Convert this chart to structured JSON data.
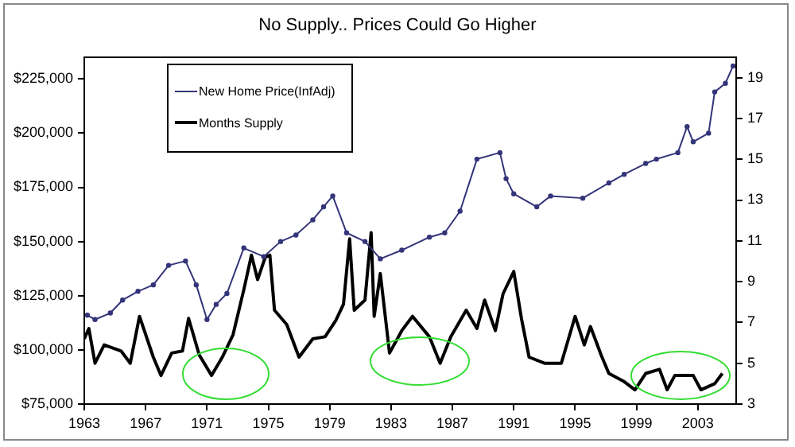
{
  "chart_data": {
    "type": "line",
    "title": "No Supply.. Prices Could Go Higher",
    "xlim": [
      1963,
      2005.5
    ],
    "xticks": [
      1963,
      1967,
      1971,
      1975,
      1979,
      1983,
      1987,
      1991,
      1995,
      1999,
      2003
    ],
    "ylim": [
      75000,
      235000
    ],
    "yticks": [
      {
        "value": 75000,
        "label": "$75,000"
      },
      {
        "value": 100000,
        "label": "$100,000"
      },
      {
        "value": 125000,
        "label": "$125,000"
      },
      {
        "value": 150000,
        "label": "$150,000"
      },
      {
        "value": 175000,
        "label": "$175,000"
      },
      {
        "value": 200000,
        "label": "$200,000"
      },
      {
        "value": 225000,
        "label": "$225,000"
      }
    ],
    "y2lim": [
      3,
      20
    ],
    "y2ticks": [
      3,
      5,
      7,
      9,
      11,
      13,
      15,
      17,
      19
    ],
    "grid": false,
    "legend": "top left",
    "line_style": "solid",
    "series": [
      {
        "name": "New Home Price(InfAdj)",
        "color": "#34347a",
        "marker": "circle",
        "x": [
          1963.2,
          1963.7,
          1964.7,
          1965.5,
          1966.5,
          1967.5,
          1968.5,
          1969.6,
          1970.3,
          1971,
          1971.6,
          1972.3,
          1973.4,
          1974.7,
          1975.8,
          1976.8,
          1977.9,
          1978.6,
          1979.2,
          1980.1,
          1981.3,
          1982.3,
          1983.7,
          1985.5,
          1986.5,
          1987.5,
          1988.6,
          1990.1,
          1990.5,
          1991,
          1992.5,
          1993.4,
          1995.5,
          1997.2,
          1998.2,
          1999.6,
          2000.3,
          2001.7,
          2002.3,
          2002.7,
          2003.7,
          2004.1,
          2004.8,
          2005.3
        ],
        "values": [
          116000,
          114000,
          117000,
          123000,
          127000,
          130000,
          139000,
          141000,
          130000,
          114000,
          121000,
          126000,
          147000,
          143000,
          150000,
          153000,
          160000,
          166000,
          171000,
          154000,
          150000,
          142000,
          146000,
          152000,
          154000,
          164000,
          188000,
          191000,
          179000,
          172000,
          166000,
          171000,
          170000,
          177000,
          181000,
          186000,
          188000,
          191000,
          203000,
          196000,
          200000,
          219000,
          223000,
          231000
        ]
      },
      {
        "name": "Months Supply",
        "color": "#000000",
        "axis": "y2",
        "marker": "none",
        "x": [
          1963,
          1963.3,
          1963.7,
          1964.3,
          1965.4,
          1966,
          1966.6,
          1967.5,
          1968,
          1968.7,
          1969.4,
          1969.8,
          1970.5,
          1971.3,
          1972,
          1972.7,
          1973.4,
          1973.9,
          1974.3,
          1974.8,
          1975.1,
          1975.4,
          1976.2,
          1977,
          1977.9,
          1978.7,
          1979.4,
          1979.9,
          1980.3,
          1980.6,
          1981.3,
          1981.7,
          1981.9,
          1982.3,
          1982.9,
          1983.7,
          1984.4,
          1985.5,
          1986.2,
          1986.9,
          1987.9,
          1988.6,
          1989.1,
          1989.8,
          1990.3,
          1991,
          1991.5,
          1992,
          1993,
          1994.1,
          1995,
          1995.6,
          1996,
          1996.7,
          1997.2,
          1998.2,
          1998.9,
          1999.6,
          2000.5,
          2001,
          2001.5,
          2002.7,
          2003.2,
          2004.1,
          2004.6
        ],
        "values": [
          6.2,
          6.7,
          5.0,
          5.9,
          5.6,
          5.0,
          7.3,
          5.3,
          4.4,
          5.5,
          5.6,
          7.2,
          5.4,
          4.4,
          5.3,
          6.4,
          8.6,
          10.3,
          9.1,
          10.2,
          10.3,
          7.6,
          6.9,
          5.3,
          6.2,
          6.3,
          7.1,
          7.9,
          11.1,
          7.6,
          8.1,
          11.4,
          7.3,
          9.4,
          5.5,
          6.6,
          7.3,
          6.3,
          5.0,
          6.3,
          7.6,
          6.7,
          8.1,
          6.6,
          8.4,
          9.5,
          7.2,
          5.3,
          5.0,
          5.0,
          7.3,
          5.9,
          6.8,
          5.4,
          4.5,
          4.1,
          3.7,
          4.5,
          4.7,
          3.7,
          4.4,
          4.4,
          3.7,
          4.0,
          4.5
        ]
      }
    ]
  }
}
